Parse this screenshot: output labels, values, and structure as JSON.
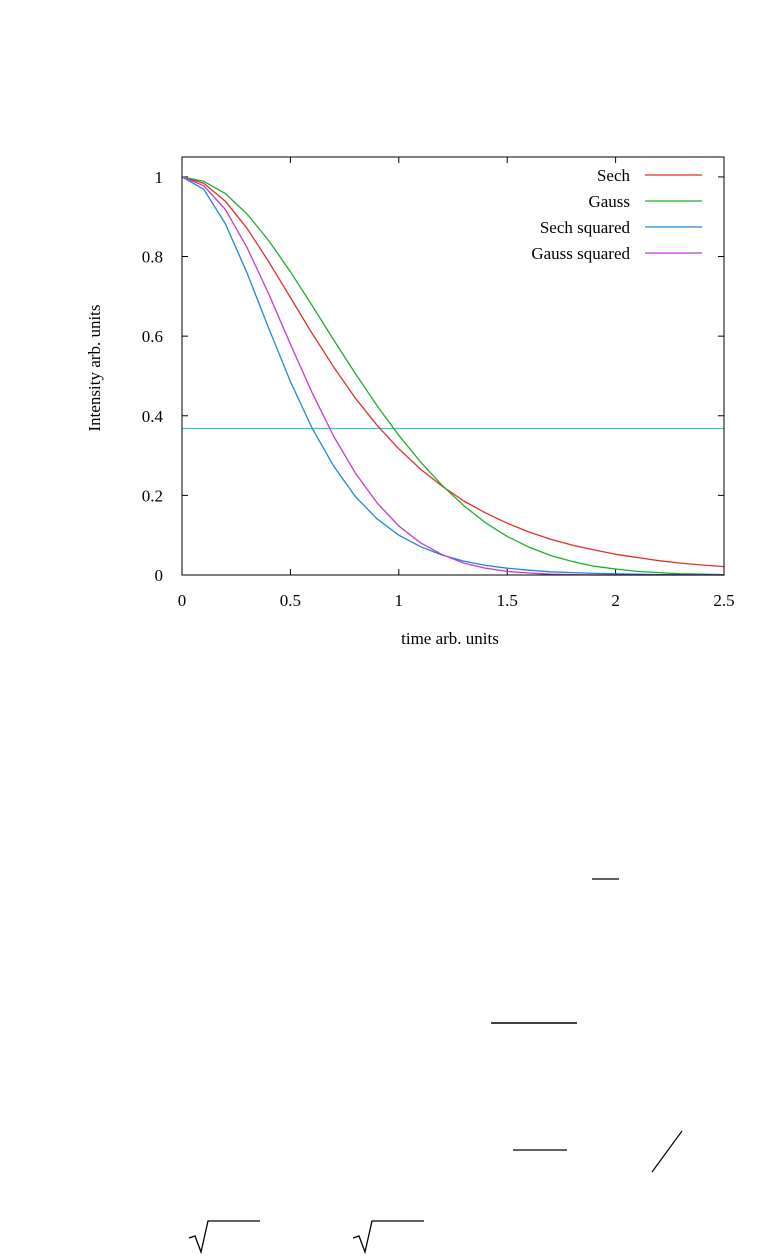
{
  "chart_data": {
    "type": "line",
    "title": "",
    "xlabel": "time arb. units",
    "ylabel": "Intensity arb. units",
    "xlim": [
      0,
      2.5
    ],
    "ylim": [
      0,
      1.05
    ],
    "xticks": [
      0,
      0.5,
      1,
      1.5,
      2,
      2.5
    ],
    "xtick_labels": [
      "0",
      "0.5",
      "1",
      "1.5",
      "2",
      "2.5"
    ],
    "yticks": [
      0,
      0.2,
      0.4,
      0.6,
      0.8,
      1
    ],
    "ytick_labels": [
      "0",
      "0.2",
      "0.4",
      "0.6",
      "0.8",
      "1"
    ],
    "grid": false,
    "legend_position": "top-right",
    "x": [
      0,
      0.1,
      0.2,
      0.3,
      0.4,
      0.5,
      0.6,
      0.7,
      0.8,
      0.9,
      1.0,
      1.1,
      1.2,
      1.3,
      1.4,
      1.5,
      1.6,
      1.7,
      1.8,
      1.9,
      2.0,
      2.1,
      2.2,
      2.3,
      2.4,
      2.5
    ],
    "series": [
      {
        "name": "Sech",
        "color": "#e0302a",
        "values": [
          1.0,
          0.984,
          0.939,
          0.871,
          0.787,
          0.697,
          0.607,
          0.522,
          0.444,
          0.376,
          0.317,
          0.266,
          0.223,
          0.186,
          0.156,
          0.13,
          0.108,
          0.09,
          0.075,
          0.063,
          0.052,
          0.044,
          0.036,
          0.03,
          0.025,
          0.021
        ]
      },
      {
        "name": "Gauss",
        "color": "#1fae2a",
        "values": [
          1.0,
          0.989,
          0.958,
          0.907,
          0.84,
          0.762,
          0.677,
          0.59,
          0.506,
          0.425,
          0.351,
          0.284,
          0.225,
          0.174,
          0.131,
          0.097,
          0.07,
          0.049,
          0.034,
          0.022,
          0.015,
          0.009,
          0.006,
          0.003,
          0.002,
          0.001
        ]
      },
      {
        "name": "Sech squared",
        "color": "#1f86d6",
        "values": [
          1.0,
          0.969,
          0.882,
          0.759,
          0.62,
          0.486,
          0.369,
          0.273,
          0.197,
          0.141,
          0.1,
          0.071,
          0.05,
          0.035,
          0.024,
          0.017,
          0.012,
          0.008,
          0.006,
          0.004,
          0.003,
          0.002,
          0.001,
          0.001,
          0.001,
          0.0
        ]
      },
      {
        "name": "Gauss squared",
        "color": "#c23bd4",
        "values": [
          1.0,
          0.978,
          0.918,
          0.823,
          0.706,
          0.58,
          0.458,
          0.348,
          0.256,
          0.181,
          0.123,
          0.081,
          0.051,
          0.03,
          0.017,
          0.009,
          0.005,
          0.002,
          0.001,
          0.0,
          0.0,
          0.0,
          0.0,
          0.0,
          0.0,
          0.0
        ]
      }
    ],
    "reference_line": {
      "y": 0.368,
      "color": "#35c8c8"
    }
  }
}
